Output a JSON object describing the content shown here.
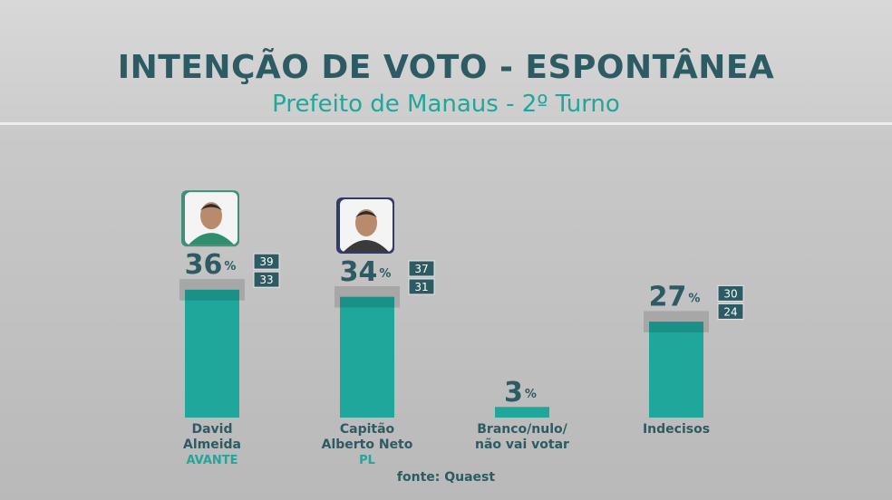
{
  "header": {
    "title": "INTENÇÃO DE VOTO - ESPONTÂNEA",
    "subtitle": "Prefeito de Manaus - 2º Turno"
  },
  "source": "fonte: Quaest",
  "colors": {
    "bar": "#1ea79a",
    "margin_band": "#9e9e9e",
    "text_dark": "#2d5b63",
    "party": "#1ea79a",
    "range_box": "#2d5b63",
    "photo_frame_1": "#3f8f7a",
    "photo_frame_2": "#353a6e"
  },
  "chart_data": {
    "type": "bar",
    "categories": [
      [
        "David",
        "Almeida"
      ],
      [
        "Capitão",
        "Alberto Neto"
      ],
      [
        "Branco/nulo/",
        "não vai votar"
      ],
      [
        "Indecisos"
      ]
    ],
    "parties": [
      "AVANTE",
      "PL",
      "",
      ""
    ],
    "values": [
      36,
      34,
      3,
      27
    ],
    "value_suffix": "%",
    "range_high": [
      39,
      37,
      null,
      30
    ],
    "range_low": [
      33,
      31,
      null,
      24
    ],
    "photos": [
      "candidate-photo",
      "candidate-photo",
      null,
      null
    ],
    "ylim": [
      0,
      40
    ]
  }
}
